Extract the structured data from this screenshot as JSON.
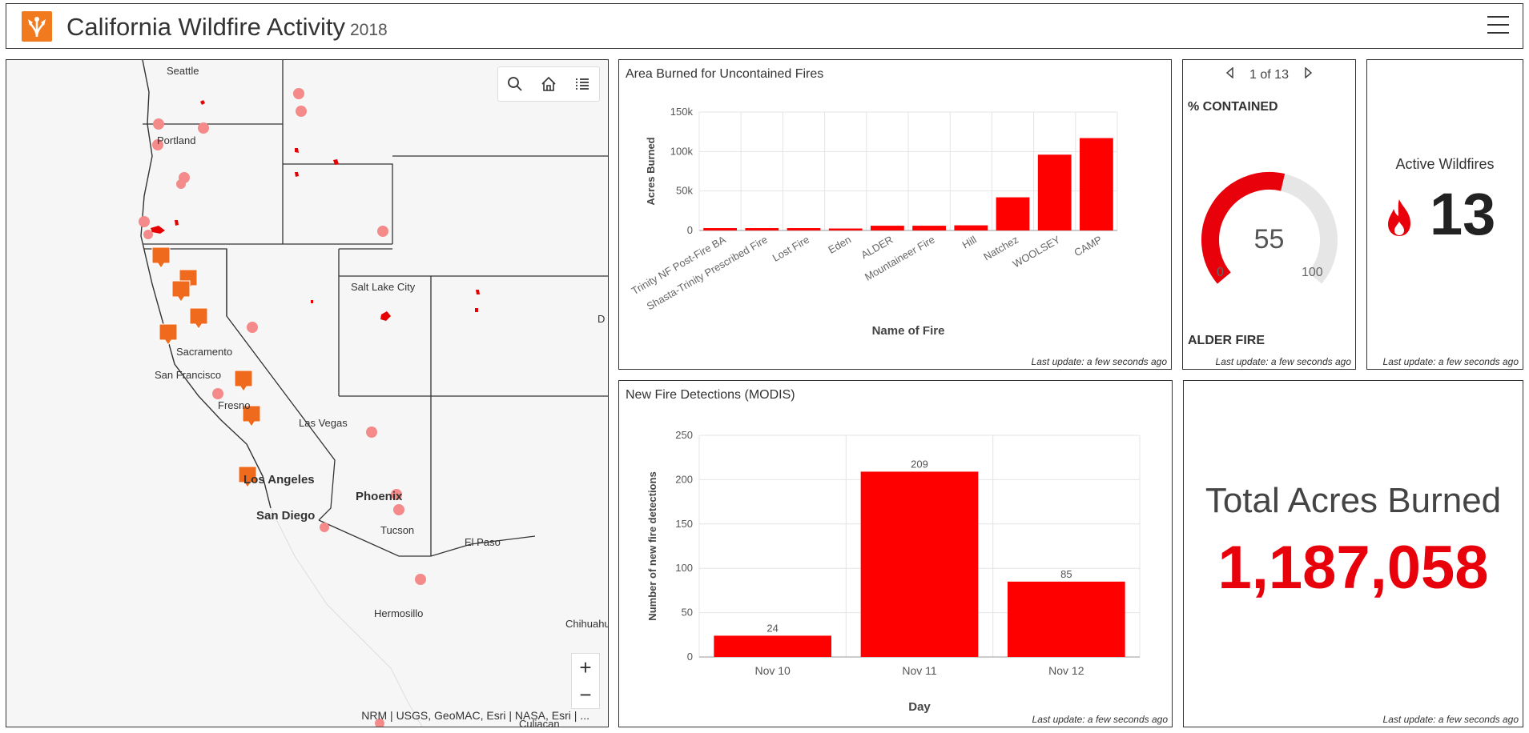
{
  "header": {
    "title": "California Wildfire Activity",
    "year": "2018",
    "colors": {
      "brand": "#f07a1d"
    }
  },
  "map": {
    "labels": [
      {
        "text": "Seattle"
      },
      {
        "text": "Portland"
      },
      {
        "text": "Salt Lake City"
      },
      {
        "text": "Sacramento"
      },
      {
        "text": "San Francisco"
      },
      {
        "text": "Fresno"
      },
      {
        "text": "Las Vegas"
      },
      {
        "text": "Los Angeles"
      },
      {
        "text": "San Diego"
      },
      {
        "text": "Phoenix"
      },
      {
        "text": "Tucson"
      },
      {
        "text": "El Paso"
      },
      {
        "text": "Hermosillo"
      },
      {
        "text": "Chihuahu"
      },
      {
        "text": "Culiacan"
      },
      {
        "text": "D"
      }
    ],
    "attribution": "NRM | USGS, GeoMAC, Esri | NASA, Esri | ...",
    "toolbar": {
      "search_icon": "search-icon",
      "home_icon": "home-icon",
      "layers_icon": "layer-list-icon"
    },
    "zoom_in": "+",
    "zoom_out": "−",
    "colors": {
      "detection": "#f48a8a",
      "fire_icon": "#f06a1d",
      "perimeter": "#e60000"
    }
  },
  "area_chart": {
    "title": "Area Burned for Uncontained Fires",
    "last_update": "Last update: a few seconds ago",
    "chart_data": {
      "type": "bar",
      "title": "",
      "xlabel": "Name of Fire",
      "ylabel": "Acres Burned",
      "categories": [
        "Trinity NF Post-Fire BA",
        "Shasta-Trinity Prescribed Fire",
        "Lost Fire",
        "Eden",
        "ALDER",
        "Mountaineer Fire",
        "Hill",
        "Natchez",
        "WOOLSEY",
        "CAMP"
      ],
      "values": [
        3000,
        3000,
        3000,
        2500,
        6000,
        6000,
        6500,
        42000,
        96000,
        117000
      ],
      "yticks": [
        "0",
        "50k",
        "100k",
        "150k"
      ],
      "ylim": [
        0,
        150000
      ],
      "grid": true,
      "color": "#ff0000"
    }
  },
  "modis_chart": {
    "title": "New Fire Detections (MODIS)",
    "last_update": "Last update: a few seconds ago",
    "chart_data": {
      "type": "bar",
      "title": "",
      "xlabel": "Day",
      "ylabel": "Number of new fire detections",
      "categories": [
        "Nov 10",
        "Nov 11",
        "Nov 12"
      ],
      "values": [
        24,
        209,
        85
      ],
      "data_labels": [
        "24",
        "209",
        "85"
      ],
      "yticks": [
        "0",
        "50",
        "100",
        "150",
        "200",
        "250"
      ],
      "ylim": [
        0,
        250
      ],
      "grid": true,
      "color": "#ff0000"
    }
  },
  "gauge": {
    "pager": "1 of 13",
    "label": "% CONTAINED",
    "value": 55,
    "value_text": "55",
    "min": "0",
    "max": "100",
    "fire_name": "ALDER FIRE",
    "last_update": "Last update: a few seconds ago",
    "colors": {
      "fill": "#e8000b",
      "track": "#e6e6e6"
    }
  },
  "active": {
    "title": "Active Wildfires",
    "count": "13",
    "icon": "flame-icon",
    "last_update": "Last update: a few seconds ago",
    "colors": {
      "flame": "#e8000b"
    }
  },
  "total": {
    "title": "Total Acres Burned",
    "value": "1,187,058",
    "last_update": "Last update: a few seconds ago"
  }
}
